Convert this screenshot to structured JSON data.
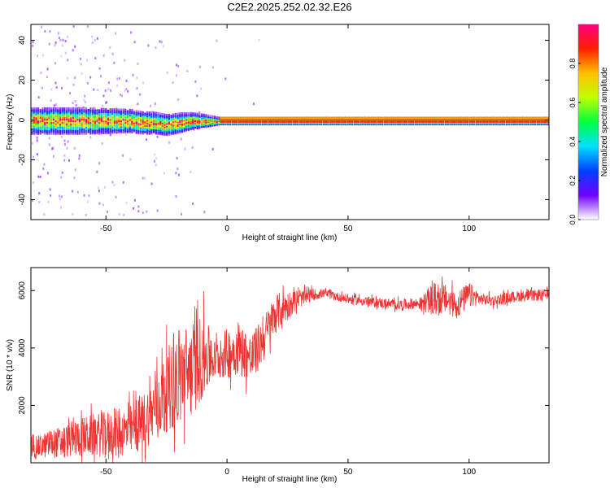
{
  "figure_title": "C2E2.2025.252.02.32.E26",
  "chart_data": [
    {
      "type": "heatmap",
      "title": "C2E2.2025.252.02.32.E26",
      "xlabel": "Height of straight line (km)",
      "ylabel": "Frequency (Hz)",
      "xlim": [
        -81,
        133
      ],
      "ylim": [
        -50,
        48
      ],
      "xticks": [
        -50,
        0,
        50,
        100
      ],
      "yticks": [
        -40,
        -20,
        0,
        20,
        40
      ],
      "series": [
        {
          "name": "ridge_frequency_hz",
          "x": [
            -80,
            -70,
            -60,
            -50,
            -40,
            -35,
            -30,
            -25,
            -20,
            -15,
            -10,
            -5,
            0,
            20,
            50,
            100,
            133
          ],
          "y": [
            0,
            0,
            0,
            0,
            0,
            -1,
            -1,
            -2,
            -1,
            0,
            0,
            0,
            0,
            0,
            0,
            0,
            0
          ]
        },
        {
          "name": "spread_halfwidth_hz",
          "x": [
            -80,
            -60,
            -40,
            -20,
            -10,
            -3,
            0,
            133
          ],
          "y": [
            4,
            4,
            3.5,
            3,
            2,
            1,
            1,
            1
          ]
        }
      ],
      "colorbar": {
        "label": "Normalized spectral amplitude",
        "range": [
          0,
          1
        ],
        "ticks": [
          "0.0",
          "0.2",
          "0.4",
          "0.6",
          "0.8"
        ],
        "colors": [
          "#ffffff",
          "#7000ff",
          "#0040ff",
          "#00e0ff",
          "#00ff40",
          "#c0ff00",
          "#ffc000",
          "#ff2000",
          "#ff0080"
        ]
      }
    },
    {
      "type": "line",
      "xlabel": "Height of straight line (km)",
      "ylabel": "SNR (10 * v/v)",
      "xlim": [
        -81,
        133
      ],
      "ylim": [
        0,
        6800
      ],
      "xticks": [
        -50,
        0,
        50,
        100
      ],
      "yticks": [
        2000,
        4000,
        6000
      ],
      "color": "#ee3333",
      "series": [
        {
          "name": "snr_mean",
          "x": [
            -81,
            -70,
            -60,
            -50,
            -40,
            -35,
            -30,
            -25,
            -20,
            -15,
            -10,
            -5,
            0,
            5,
            10,
            15,
            20,
            25,
            30,
            35,
            40,
            50,
            60,
            70,
            80,
            85,
            90,
            95,
            100,
            105,
            110,
            120,
            133
          ],
          "y": [
            500,
            700,
            900,
            1000,
            1100,
            1400,
            1900,
            2500,
            3000,
            3200,
            3700,
            3600,
            3800,
            4000,
            3600,
            4300,
            5200,
            5500,
            5700,
            5850,
            5900,
            5700,
            5600,
            5500,
            5550,
            5700,
            5700,
            5500,
            5850,
            5700,
            5650,
            5800,
            5850
          ]
        },
        {
          "name": "snr_noise_amplitude",
          "x": [
            -81,
            -60,
            -40,
            -30,
            -20,
            -10,
            -5,
            0,
            10,
            20,
            30,
            40,
            80,
            85,
            92,
            100,
            105,
            133
          ],
          "y": [
            350,
            700,
            900,
            1100,
            1800,
            1500,
            700,
            900,
            900,
            700,
            300,
            150,
            200,
            600,
            500,
            450,
            200,
            200
          ]
        }
      ]
    }
  ]
}
